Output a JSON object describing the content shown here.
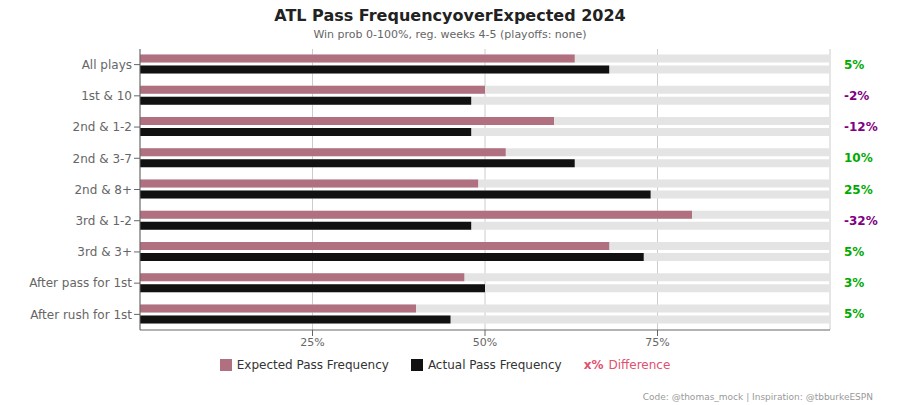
{
  "chart_data": {
    "type": "bar",
    "orientation": "horizontal",
    "title": "ATL Pass FrequencyoverExpected 2024",
    "subtitle": "Win prob 0-100%, reg. weeks 4-5 (playoffs: none)",
    "footer": "Code: @thomas_mock | Inspiration: @tbburkeESPN",
    "categories": [
      "All plays",
      "1st & 10",
      "2nd & 1-2",
      "2nd & 3-7",
      "2nd & 8+",
      "3rd & 1-2",
      "3rd & 3+",
      "After pass for 1st",
      "After rush for 1st"
    ],
    "series": [
      {
        "name": "Expected Pass Frequency",
        "color": "#b07080",
        "values": [
          63,
          50,
          60,
          53,
          49,
          80,
          68,
          47,
          40
        ]
      },
      {
        "name": "Actual Pass Frequency",
        "color": "#111111",
        "values": [
          68,
          48,
          48,
          63,
          74,
          48,
          73,
          50,
          45
        ]
      }
    ],
    "difference": {
      "name": "Difference",
      "color": "#e05070",
      "values": [
        5,
        -2,
        -12,
        10,
        25,
        -32,
        5,
        3,
        5
      ],
      "value_labels": [
        "5%",
        "-2%",
        "-12%",
        "10%",
        "25%",
        "-32%",
        "5%",
        "3%",
        "5%"
      ],
      "colors": [
        "#00aa00",
        "#800080",
        "#800080",
        "#00aa00",
        "#00aa00",
        "#800080",
        "#00aa00",
        "#00aa00",
        "#00aa00"
      ]
    },
    "annotations": [
      "x%"
    ],
    "xlim": [
      0,
      100
    ],
    "xticks": [
      {
        "value": 25,
        "label": "25%"
      },
      {
        "value": 50,
        "label": "50%"
      },
      {
        "value": 75,
        "label": "75%"
      }
    ],
    "grid": true,
    "legend": "bottom"
  }
}
